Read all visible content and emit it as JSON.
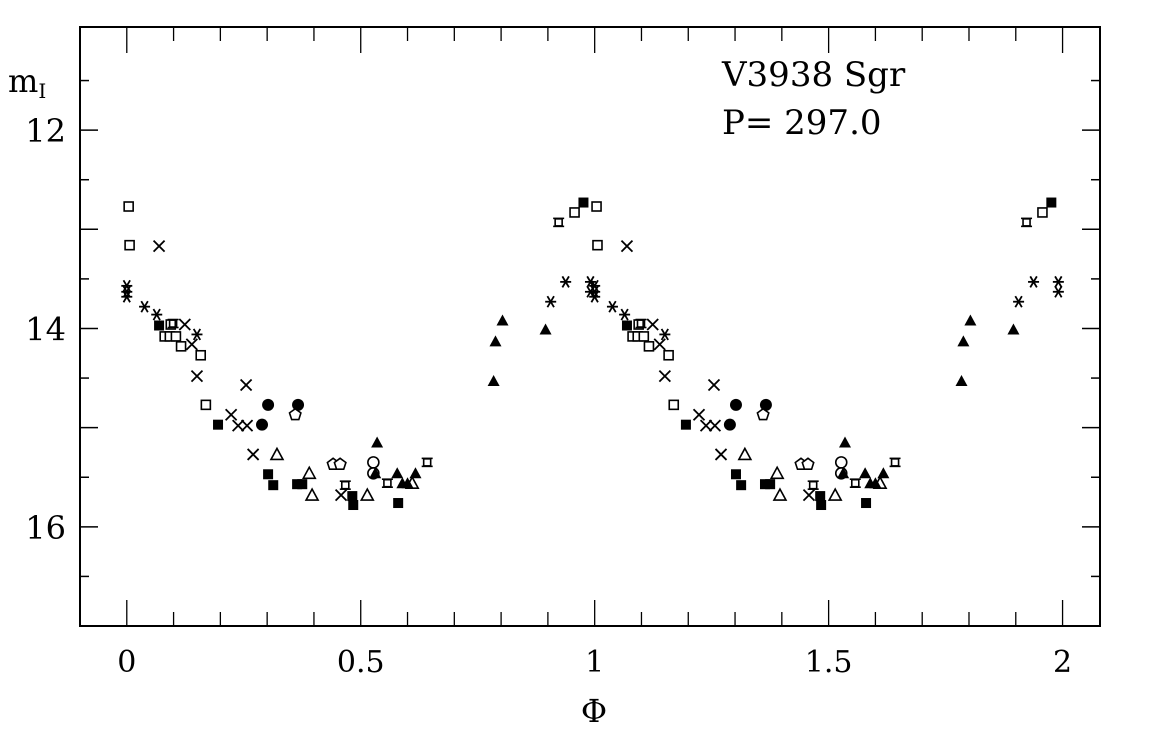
{
  "chart_data": {
    "type": "scatter",
    "title": "V3938 Sgr",
    "annotation": "P= 297.0",
    "xlabel": "Φ",
    "ylabel_main": "m",
    "ylabel_sub": "I",
    "xlim": [
      -0.1,
      2.08
    ],
    "ylim": [
      17.0,
      10.96
    ],
    "y_inverted": true,
    "x_ticks": [
      0,
      0.5,
      1,
      1.5,
      2
    ],
    "x_tick_labels": [
      "0",
      "0.5",
      "1",
      "1.5",
      "2"
    ],
    "y_ticks": [
      12,
      14,
      16
    ],
    "y_tick_labels": [
      "12",
      "14",
      "16"
    ],
    "grid": false,
    "phase_repeat": "each point plotted at phase and phase+1",
    "series": [
      {
        "name": "asterisk",
        "marker": "asterisk",
        "points": [
          [
            0.0,
            13.57
          ],
          [
            0.0,
            13.63
          ],
          [
            0.0,
            13.68
          ],
          [
            0.038,
            13.78
          ],
          [
            0.064,
            13.86
          ],
          [
            0.15,
            14.06
          ],
          [
            0.906,
            13.73
          ],
          [
            0.938,
            13.53
          ],
          [
            0.991,
            13.53
          ],
          [
            0.991,
            13.63
          ]
        ]
      },
      {
        "name": "open-square",
        "marker": "open-square",
        "points": [
          [
            0.004,
            12.77
          ],
          [
            0.006,
            13.16
          ],
          [
            0.081,
            14.08
          ],
          [
            0.092,
            14.08
          ],
          [
            0.105,
            14.08
          ],
          [
            0.094,
            13.96
          ],
          [
            0.116,
            14.18
          ],
          [
            0.158,
            14.27
          ],
          [
            0.169,
            14.77
          ],
          [
            0.957,
            12.83
          ]
        ]
      },
      {
        "name": "filled-square",
        "marker": "filled-square",
        "points": [
          [
            0.069,
            13.97
          ],
          [
            0.195,
            14.97
          ],
          [
            0.302,
            15.47
          ],
          [
            0.313,
            15.58
          ],
          [
            0.364,
            15.57
          ],
          [
            0.375,
            15.57
          ],
          [
            0.482,
            15.69
          ],
          [
            0.484,
            15.78
          ],
          [
            0.58,
            15.76
          ],
          [
            0.976,
            12.73
          ]
        ]
      },
      {
        "name": "cross",
        "marker": "cross",
        "points": [
          [
            0.069,
            13.17
          ],
          [
            0.124,
            13.96
          ],
          [
            0.139,
            14.16
          ],
          [
            0.15,
            14.48
          ],
          [
            0.223,
            14.87
          ],
          [
            0.238,
            14.98
          ],
          [
            0.257,
            14.98
          ],
          [
            0.255,
            14.57
          ],
          [
            0.27,
            15.27
          ],
          [
            0.458,
            15.68
          ]
        ]
      },
      {
        "name": "filled-circle",
        "marker": "filled-circle",
        "points": [
          [
            0.302,
            14.77
          ],
          [
            0.366,
            14.77
          ],
          [
            0.289,
            14.97
          ]
        ]
      },
      {
        "name": "open-circle",
        "marker": "open-circle",
        "points": [
          [
            0.527,
            15.35
          ],
          [
            0.527,
            15.46
          ]
        ]
      },
      {
        "name": "open-pentagon",
        "marker": "open-pentagon",
        "points": [
          [
            0.36,
            14.87
          ],
          [
            0.441,
            15.37
          ],
          [
            0.456,
            15.37
          ]
        ]
      },
      {
        "name": "open-triangle",
        "marker": "open-triangle",
        "points": [
          [
            0.321,
            15.27
          ],
          [
            0.39,
            15.46
          ],
          [
            0.396,
            15.68
          ],
          [
            0.514,
            15.68
          ],
          [
            0.61,
            15.56
          ]
        ]
      },
      {
        "name": "filled-triangle",
        "marker": "filled-triangle",
        "points": [
          [
            0.535,
            15.15
          ],
          [
            0.531,
            15.46
          ],
          [
            0.578,
            15.46
          ],
          [
            0.589,
            15.56
          ],
          [
            0.617,
            15.46
          ],
          [
            0.6,
            15.56
          ],
          [
            0.784,
            14.53
          ],
          [
            0.788,
            14.13
          ],
          [
            0.803,
            13.92
          ],
          [
            0.895,
            14.01
          ]
        ]
      },
      {
        "name": "square-star",
        "marker": "square-star",
        "points": [
          [
            0.099,
            13.95
          ],
          [
            0.467,
            15.58
          ],
          [
            0.557,
            15.56
          ],
          [
            0.642,
            15.35
          ],
          [
            0.923,
            12.93
          ]
        ]
      }
    ]
  }
}
